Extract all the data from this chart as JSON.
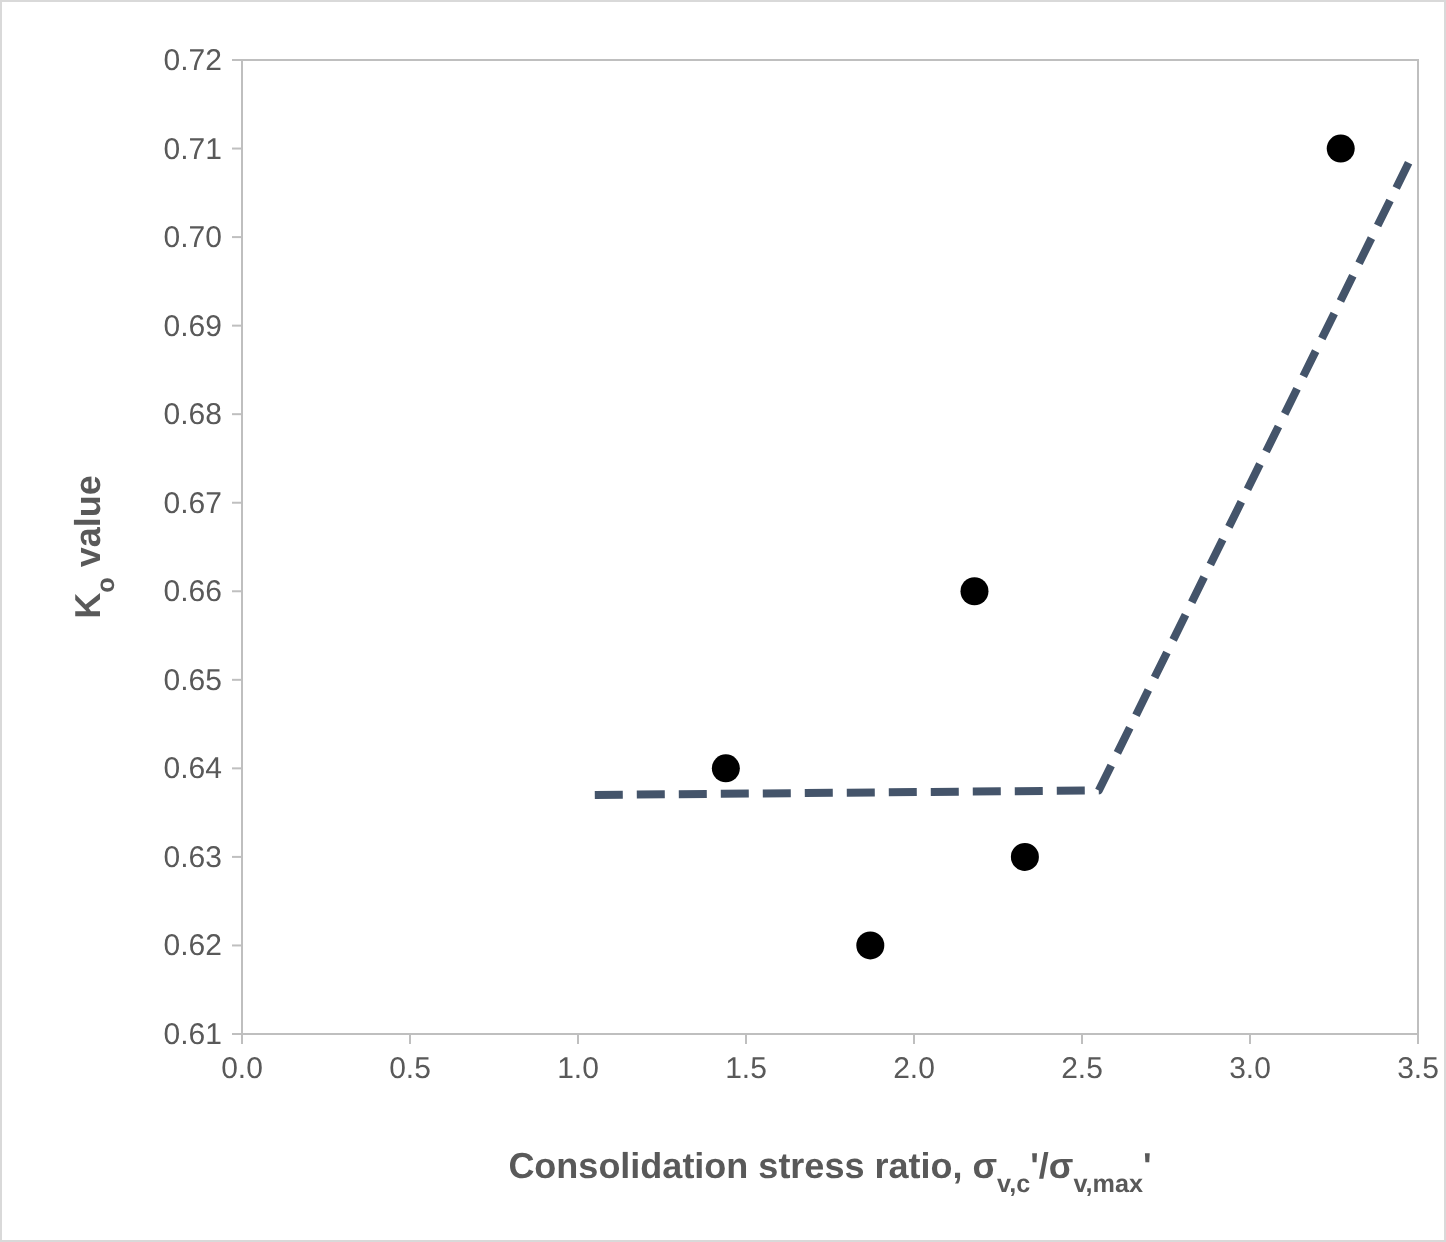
{
  "chart_data": {
    "type": "scatter",
    "xlabel": "Consolidation stress ratio, σ$_{v,c}$'/σ$_{v,max}$'",
    "ylabel": "K$_{o}$ value",
    "xlim": [
      0,
      3.5
    ],
    "xticks": [
      {
        "value": 0,
        "label": "0.0"
      },
      0.5,
      {
        "value": 1,
        "label": "1.0"
      },
      1.5,
      {
        "value": 2,
        "label": "2.0"
      },
      2.5,
      {
        "value": 3,
        "label": "3.0"
      },
      3.5
    ],
    "ylim": [
      0.61,
      0.72
    ],
    "yticks": [
      0.61,
      0.62,
      0.63,
      0.64,
      0.65,
      0.66,
      0.67,
      0.68,
      0.69,
      {
        "value": 0.7,
        "label": "0.70"
      },
      0.71,
      0.72
    ],
    "grid": false,
    "series": [
      {
        "type": "line",
        "color": "#44546a",
        "line_style": "dashed",
        "marker": "none",
        "x": [
          1.05,
          2.55,
          3.48
        ],
        "values": [
          0.637,
          0.6375,
          0.709
        ]
      },
      {
        "color": "#000000",
        "marker": "circle",
        "x": [
          1.44,
          1.87,
          2.18,
          2.33,
          3.27
        ],
        "values": [
          0.64,
          0.62,
          0.66,
          0.63,
          0.71
        ]
      }
    ]
  }
}
